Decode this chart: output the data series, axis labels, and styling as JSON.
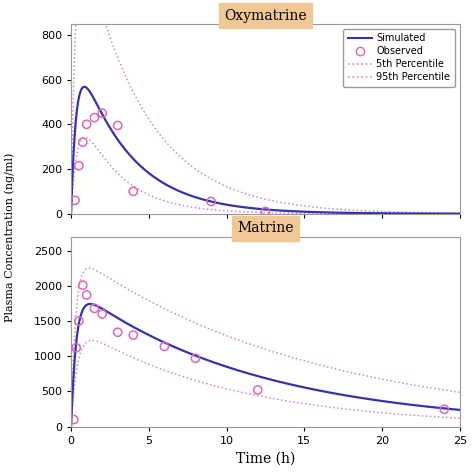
{
  "title1": "Oxymatrine",
  "title2": "Matrine",
  "xlabel": "Time (h)",
  "ylabel": "Plasma Concentration (ng/ml)",
  "xlim": [
    0,
    25
  ],
  "ylim1": [
    0,
    850
  ],
  "ylim2": [
    0,
    2700
  ],
  "yticks1": [
    0,
    200,
    400,
    600,
    800
  ],
  "yticks2": [
    0,
    500,
    1000,
    1500,
    2000,
    2500
  ],
  "xticks": [
    0,
    5,
    10,
    15,
    20,
    25
  ],
  "simulated_color": "#3333aa",
  "percentile_color": "#cc88cc",
  "observed_color": "#dd66bb",
  "header_color": "#f0c896",
  "bg_color": "#ffffff",
  "legend_labels": [
    "Simulated",
    "Observed",
    "5th Percentile",
    "95th Percentile"
  ],
  "obs1_t": [
    0.25,
    0.5,
    0.75,
    1.0,
    1.5,
    2.0,
    3.0,
    4.0,
    9.0,
    12.5
  ],
  "obs1_c": [
    60,
    215,
    320,
    400,
    430,
    450,
    395,
    100,
    55,
    10
  ],
  "obs2_t": [
    0.17,
    0.33,
    0.5,
    0.75,
    1.0,
    1.5,
    2.0,
    3.0,
    4.0,
    6.0,
    8.0,
    12.0,
    24.0
  ],
  "obs2_c": [
    100,
    1120,
    1500,
    2010,
    1870,
    1680,
    1600,
    1340,
    1300,
    1140,
    970,
    520,
    245
  ],
  "sim1_params": {
    "ka": 3.0,
    "ke": 0.3,
    "scale": 2200
  },
  "p95_1_params": {
    "ka": 3.5,
    "ke": 0.25,
    "scale": 4800
  },
  "p5_1_params": {
    "ka": 2.5,
    "ke": 0.38,
    "scale": 1200
  },
  "sim2_params": {
    "ka": 3.0,
    "ke": 0.085,
    "scale": 5800
  },
  "p95_2_params": {
    "ka": 3.5,
    "ke": 0.065,
    "scale": 8500
  },
  "p5_2_params": {
    "ka": 2.5,
    "ke": 0.1,
    "scale": 3500
  }
}
